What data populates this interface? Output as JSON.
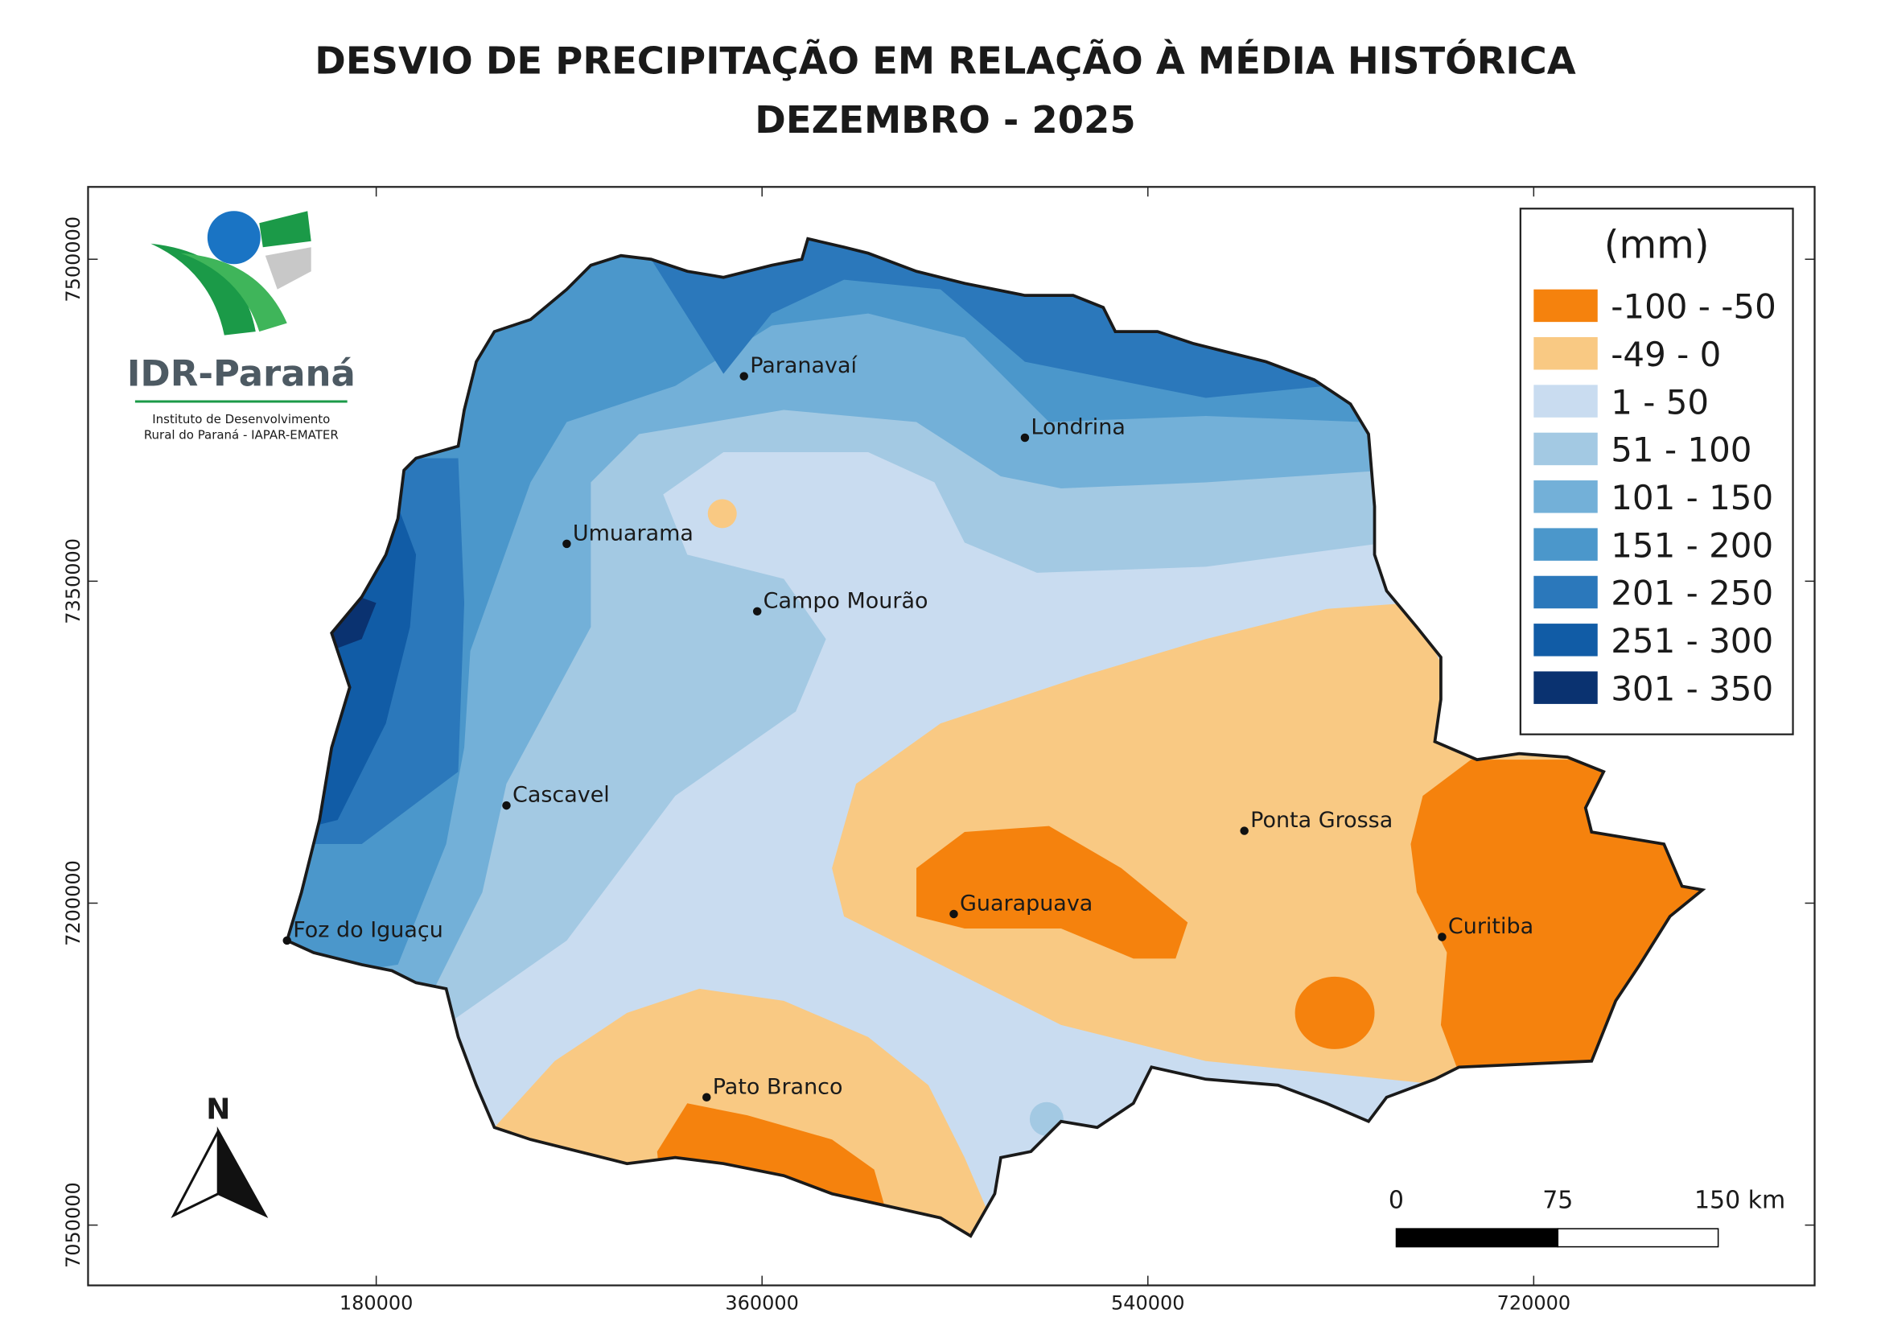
{
  "title": [
    "DESVIO DE PRECIPITAÇÃO EM RELAÇÃO À MÉDIA HISTÓRICA",
    "DEZEMBRO - 2025"
  ],
  "logo": {
    "name": "IDR-Paraná",
    "subtitle": [
      "Instituto de Desenvolvimento",
      "Rural do Paraná - IAPAR-EMATER"
    ]
  },
  "legend": {
    "title": "(mm)",
    "classes": [
      {
        "label": "-100 - -50",
        "color": "#f5820d"
      },
      {
        "label": "-49 - 0",
        "color": "#f9c983"
      },
      {
        "label": "1 - 50",
        "color": "#c9dcf0"
      },
      {
        "label": "51 - 100",
        "color": "#a3c9e3"
      },
      {
        "label": "101 - 150",
        "color": "#73b0d8"
      },
      {
        "label": "151 - 200",
        "color": "#4b97cb"
      },
      {
        "label": "201 - 250",
        "color": "#2b78bb"
      },
      {
        "label": "251 - 300",
        "color": "#115ca6"
      },
      {
        "label": "301 - 350",
        "color": "#0a3270"
      }
    ]
  },
  "cities": [
    "Paranavaí",
    "Londrina",
    "Umuarama",
    "Campo Mourão",
    "Cascavel",
    "Ponta Grossa",
    "Guarapuava",
    "Foz do Iguaçu",
    "Curitiba",
    "Pato Branco"
  ],
  "axes": {
    "xticks": [
      180000,
      360000,
      540000,
      720000
    ],
    "yticks": [
      7050000,
      7200000,
      7350000,
      7500000
    ]
  },
  "scale_bar": {
    "labels": [
      "0",
      "75",
      "150 km"
    ]
  },
  "north": "N"
}
